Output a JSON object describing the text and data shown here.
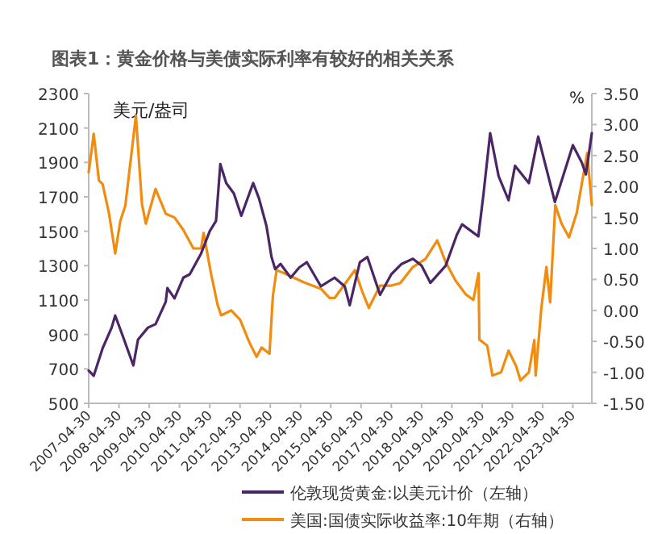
{
  "chart_data": {
    "type": "line",
    "title": "图表1：黄金价格与美债实际利率有较好的相关关系",
    "ylabel": "美元/盎司",
    "y2label": "%",
    "xlim": [
      "2007-04-30",
      "2023-12-15"
    ],
    "xticks": [
      "2007-04-30",
      "2008-04-30",
      "2009-04-30",
      "2010-04-30",
      "2011-04-30",
      "2012-04-30",
      "2013-04-30",
      "2014-04-30",
      "2015-04-30",
      "2016-04-30",
      "2017-04-30",
      "2018-04-30",
      "2019-04-30",
      "2020-04-30",
      "2021-04-30",
      "2022-04-30",
      "2023-04-30"
    ],
    "ylim": [
      500,
      2300
    ],
    "yticks": [
      500,
      700,
      900,
      1100,
      1300,
      1500,
      1700,
      1900,
      2100,
      2300
    ],
    "y2lim": [
      -1.5,
      3.5
    ],
    "y2ticks": [
      {
        "value": -1.5,
        "label": "-1.50"
      },
      {
        "value": -1,
        "label": "-1.00"
      },
      {
        "value": -0.5,
        "label": "-0.50"
      },
      {
        "value": 0,
        "label": "0.00"
      },
      {
        "value": 0.5,
        "label": "0.50"
      },
      {
        "value": 1,
        "label": "1.00"
      },
      {
        "value": 1.5,
        "label": "1.50"
      },
      {
        "value": 2,
        "label": "2.00"
      },
      {
        "value": 2.5,
        "label": "2.50"
      },
      {
        "value": 3,
        "label": "3.00"
      },
      {
        "value": 3.5,
        "label": "3.50"
      }
    ],
    "legend": "bottom",
    "grid": false,
    "series": [
      {
        "name": "伦敦现货黄金:以美元计价（左轴）",
        "color": "#4b2667",
        "x": [
          "2007-04-30",
          "2007-06-30",
          "2007-10-15",
          "2008-02-01",
          "2008-03-15",
          "2008-06-15",
          "2008-10-20",
          "2008-12-15",
          "2009-04-15",
          "2009-07-15",
          "2009-11-15",
          "2009-12-05",
          "2010-03-01",
          "2010-06-15",
          "2010-09-01",
          "2011-01-15",
          "2011-04-30",
          "2011-07-15",
          "2011-09-05",
          "2011-11-15",
          "2012-02-15",
          "2012-05-15",
          "2012-10-05",
          "2012-12-15",
          "2013-03-15",
          "2013-05-15",
          "2013-06-28",
          "2013-09-01",
          "2014-01-01",
          "2014-04-15",
          "2014-07-15",
          "2015-01-01",
          "2015-06-15",
          "2015-10-15",
          "2015-12-15",
          "2016-04-15",
          "2016-07-15",
          "2016-12-15",
          "2017-04-30",
          "2017-09-01",
          "2018-01-15",
          "2018-04-30",
          "2018-08-15",
          "2019-02-15",
          "2019-06-30",
          "2019-09-01",
          "2020-03-15",
          "2020-05-15",
          "2020-08-05",
          "2020-11-15",
          "2021-03-15",
          "2021-06-01",
          "2021-11-15",
          "2022-03-08",
          "2022-09-25",
          "2023-04-30",
          "2023-08-15",
          "2023-10-05",
          "2023-12-15"
        ],
        "values": [
          690,
          660,
          820,
          940,
          1010,
          890,
          720,
          870,
          940,
          960,
          1090,
          1170,
          1110,
          1230,
          1250,
          1370,
          1500,
          1560,
          1890,
          1780,
          1720,
          1590,
          1780,
          1690,
          1530,
          1350,
          1280,
          1310,
          1230,
          1290,
          1320,
          1180,
          1230,
          1180,
          1070,
          1320,
          1350,
          1130,
          1250,
          1310,
          1340,
          1300,
          1200,
          1300,
          1480,
          1540,
          1470,
          1710,
          2070,
          1820,
          1680,
          1880,
          1780,
          2050,
          1670,
          2000,
          1900,
          1830,
          2070
        ]
      },
      {
        "name": "美国:国债实际收益率:10年期（右轴）",
        "color": "#f28c0f",
        "axis": "y2",
        "x": [
          "2007-04-30",
          "2007-06-30",
          "2007-08-31",
          "2007-10-15",
          "2008-01-01",
          "2008-03-15",
          "2008-05-15",
          "2008-07-15",
          "2008-11-20",
          "2009-02-01",
          "2009-03-20",
          "2009-07-15",
          "2009-11-15",
          "2010-03-01",
          "2010-06-15",
          "2010-10-15",
          "2011-01-15",
          "2011-02-15",
          "2011-05-15",
          "2011-08-01",
          "2011-09-15",
          "2012-01-15",
          "2012-05-01",
          "2012-08-15",
          "2012-11-15",
          "2013-01-15",
          "2013-04-20",
          "2013-05-31",
          "2013-07-15",
          "2013-10-15",
          "2014-06-15",
          "2015-01-01",
          "2015-04-15",
          "2015-06-15",
          "2015-11-15",
          "2016-02-15",
          "2016-05-15",
          "2016-08-01",
          "2016-12-15",
          "2017-04-30",
          "2017-08-15",
          "2018-01-15",
          "2018-06-15",
          "2018-11-05",
          "2019-02-15",
          "2019-06-15",
          "2019-10-15",
          "2020-01-15",
          "2020-03-18",
          "2020-03-28",
          "2020-07-01",
          "2020-09-01",
          "2020-12-15",
          "2021-03-15",
          "2021-06-15",
          "2021-08-05",
          "2021-11-15",
          "2022-01-20",
          "2022-02-05",
          "2022-04-15",
          "2022-06-15",
          "2022-07-30",
          "2022-09-30",
          "2022-12-15",
          "2023-03-15",
          "2023-06-15",
          "2023-10-20",
          "2023-12-15"
        ],
        "values": [
          2.23,
          2.85,
          2.1,
          2.04,
          1.56,
          0.92,
          1.44,
          1.69,
          3.14,
          1.72,
          1.4,
          1.96,
          1.56,
          1.5,
          1.3,
          1.0,
          1.0,
          1.25,
          0.6,
          0.1,
          -0.08,
          0.0,
          -0.15,
          -0.5,
          -0.75,
          -0.6,
          -0.7,
          0.23,
          0.65,
          0.6,
          0.45,
          0.35,
          0.2,
          0.2,
          0.48,
          0.65,
          0.3,
          0.04,
          0.4,
          0.4,
          0.44,
          0.7,
          0.83,
          1.13,
          0.78,
          0.48,
          0.26,
          0.17,
          0.6,
          -0.47,
          -0.57,
          -1.05,
          -1.0,
          -0.65,
          -0.9,
          -1.13,
          -1.0,
          -0.48,
          -1.05,
          0.04,
          0.7,
          0.13,
          1.7,
          1.4,
          1.18,
          1.57,
          2.54,
          1.7
        ]
      }
    ]
  }
}
